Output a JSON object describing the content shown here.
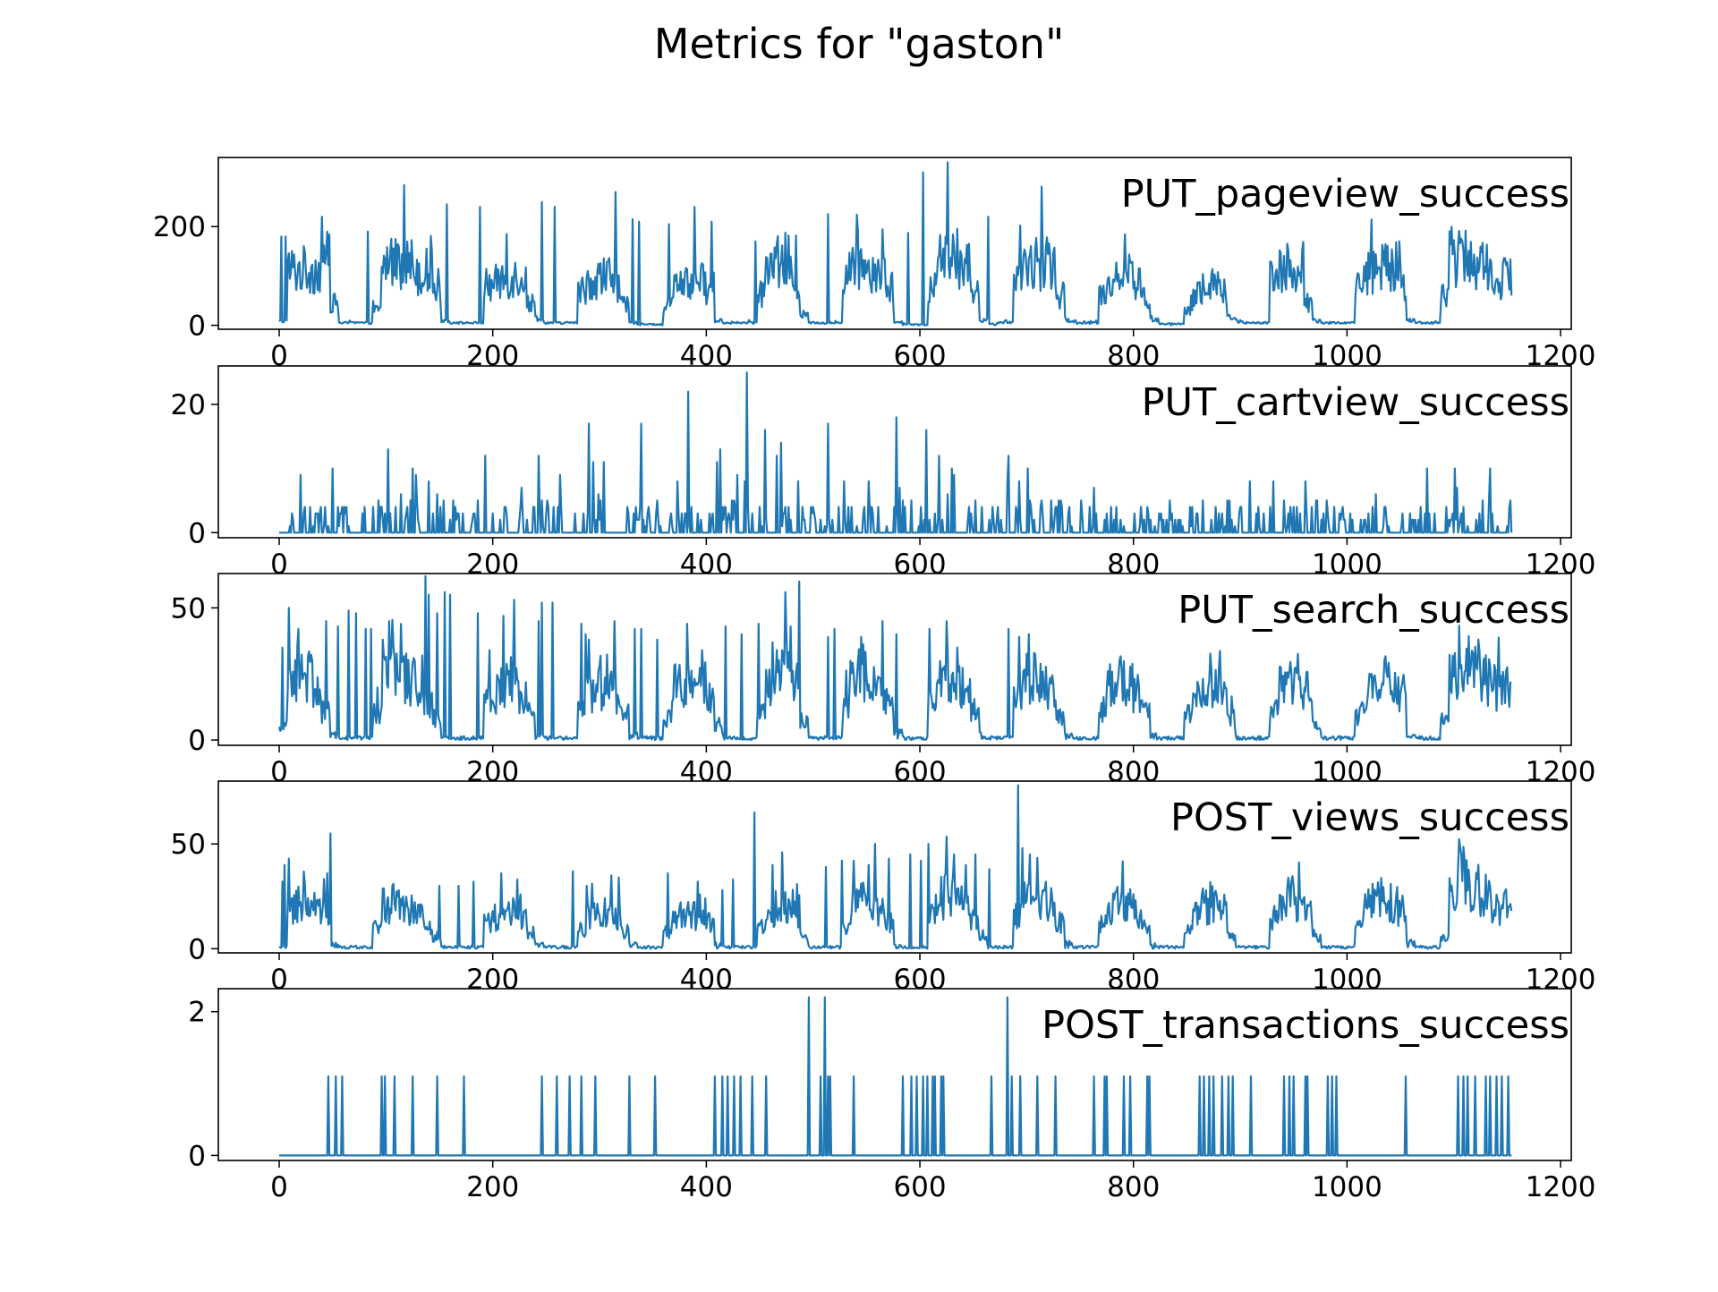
{
  "title": "Metrics for \"gaston\"",
  "colors": {
    "line": "#1f77b4",
    "axes": "#000000",
    "background": "#ffffff"
  },
  "chart_data": [
    {
      "type": "line",
      "series": [
        {
          "name": "PUT_pageview_success"
        }
      ],
      "xlim": [
        -57,
        1210
      ],
      "ylim": [
        -8,
        340
      ],
      "xticks": [
        "0",
        "200",
        "400",
        "600",
        "800",
        "1000",
        "1200"
      ],
      "yticks": [
        "0",
        "200"
      ],
      "grid": false,
      "legend": "top-right",
      "base": [
        8,
        112,
        112,
        112,
        112,
        112,
        45,
        5,
        5,
        5,
        5,
        30,
        125,
        135,
        132,
        125,
        110,
        108,
        80,
        10,
        5,
        5,
        5,
        5,
        80,
        85,
        95,
        98,
        100,
        45,
        15,
        5,
        5,
        5,
        5,
        70,
        90,
        95,
        100,
        75,
        40,
        5,
        3,
        2,
        2,
        40,
        82,
        85,
        85,
        88,
        75,
        10,
        5,
        5,
        5,
        5,
        65,
        110,
        125,
        130,
        80,
        20,
        5,
        5,
        5,
        5,
        105,
        125,
        120,
        118,
        115,
        70,
        5,
        3,
        2,
        2,
        80,
        128,
        130,
        130,
        115,
        60,
        10,
        3,
        5,
        5,
        85,
        120,
        130,
        118,
        115,
        60,
        10,
        5,
        5,
        5,
        65,
        95,
        100,
        98,
        85,
        55,
        10,
        3,
        3,
        3,
        30,
        70,
        75,
        80,
        70,
        15,
        8,
        5,
        5,
        5,
        108,
        118,
        122,
        120,
        45,
        10,
        5,
        5,
        5,
        5,
        82,
        112,
        112,
        115,
        118,
        90,
        10,
        5,
        5,
        5,
        62,
        140,
        150,
        135,
        128,
        118,
        95
      ],
      "spikes": [
        [
          2,
          180
        ],
        [
          6,
          180
        ],
        [
          40,
          220
        ],
        [
          45,
          190
        ],
        [
          83,
          190
        ],
        [
          112,
          160
        ],
        [
          157,
          245
        ],
        [
          188,
          240
        ],
        [
          213,
          185
        ],
        [
          246,
          250
        ],
        [
          258,
          240
        ],
        [
          315,
          270
        ],
        [
          331,
          215
        ],
        [
          337,
          210
        ],
        [
          365,
          205
        ],
        [
          389,
          240
        ],
        [
          405,
          210
        ],
        [
          446,
          170
        ],
        [
          484,
          182
        ],
        [
          514,
          225
        ],
        [
          589,
          187
        ],
        [
          603,
          310
        ],
        [
          626,
          330
        ],
        [
          664,
          220
        ],
        [
          694,
          202
        ],
        [
          714,
          281
        ]
      ]
    },
    {
      "type": "line",
      "series": [
        {
          "name": "PUT_cartview_success"
        }
      ],
      "xlim": [
        -57,
        1210
      ],
      "ylim": [
        -0.8,
        26
      ],
      "xticks": [
        "0",
        "200",
        "400",
        "600",
        "800",
        "1000",
        "1200"
      ],
      "yticks": [
        "0",
        "20"
      ],
      "grid": false,
      "legend": "top-right",
      "mean": 1.6,
      "prob": 0.28,
      "spikes": [
        [
          50,
          10
        ],
        [
          102,
          13
        ],
        [
          140,
          8
        ],
        [
          193,
          12
        ],
        [
          243,
          12
        ],
        [
          290,
          17
        ],
        [
          339,
          17
        ],
        [
          373,
          8
        ],
        [
          383,
          22
        ],
        [
          413,
          13
        ],
        [
          438,
          25
        ],
        [
          455,
          16
        ],
        [
          466,
          12
        ],
        [
          470,
          14
        ],
        [
          486,
          8
        ],
        [
          514,
          17
        ],
        [
          578,
          18
        ],
        [
          606,
          16
        ],
        [
          618,
          12
        ],
        [
          630,
          10
        ],
        [
          683,
          12
        ],
        [
          693,
          8
        ],
        [
          701,
          10
        ]
      ]
    },
    {
      "type": "line",
      "series": [
        {
          "name": "PUT_search_success"
        }
      ],
      "xlim": [
        -57,
        1210
      ],
      "ylim": [
        -2,
        63
      ],
      "xticks": [
        "0",
        "200",
        "400",
        "600",
        "800",
        "1000",
        "1200"
      ],
      "yticks": [
        "0",
        "50"
      ],
      "grid": false,
      "legend": "top-right",
      "base": [
        5,
        22,
        25,
        26,
        20,
        10,
        2,
        1,
        1,
        1,
        1,
        10,
        22,
        25,
        24,
        22,
        18,
        15,
        8,
        1,
        1,
        1,
        1,
        1,
        15,
        18,
        20,
        22,
        18,
        10,
        2,
        1,
        1,
        1,
        1,
        12,
        18,
        20,
        22,
        18,
        10,
        2,
        1,
        1,
        1,
        8,
        20,
        22,
        20,
        22,
        15,
        5,
        1,
        1,
        1,
        1,
        10,
        22,
        25,
        28,
        22,
        8,
        1,
        1,
        1,
        1,
        15,
        24,
        26,
        22,
        20,
        15,
        3,
        1,
        1,
        1,
        15,
        22,
        25,
        22,
        20,
        12,
        2,
        1,
        1,
        1,
        15,
        22,
        24,
        20,
        18,
        10,
        2,
        1,
        1,
        1,
        12,
        20,
        22,
        20,
        18,
        10,
        2,
        1,
        1,
        1,
        10,
        18,
        20,
        22,
        20,
        8,
        1,
        1,
        1,
        1,
        15,
        22,
        24,
        20,
        18,
        5,
        1,
        1,
        1,
        1,
        10,
        18,
        20,
        22,
        20,
        18,
        2,
        1,
        1,
        1,
        10,
        25,
        30,
        28,
        25,
        22,
        20
      ],
      "spikes": [
        [
          3,
          35
        ],
        [
          9,
          50
        ],
        [
          18,
          42
        ],
        [
          44,
          45
        ],
        [
          55,
          43
        ],
        [
          65,
          49
        ],
        [
          72,
          48
        ],
        [
          81,
          42
        ],
        [
          86,
          42
        ],
        [
          97,
          38
        ],
        [
          103,
          45
        ],
        [
          134,
          32
        ],
        [
          137,
          62
        ],
        [
          140,
          55
        ],
        [
          148,
          48
        ],
        [
          155,
          56
        ],
        [
          160,
          55
        ],
        [
          186,
          48
        ],
        [
          197,
          34
        ],
        [
          210,
          47
        ],
        [
          220,
          53
        ],
        [
          243,
          45
        ],
        [
          246,
          52
        ],
        [
          256,
          52
        ],
        [
          283,
          44
        ],
        [
          287,
          40
        ],
        [
          290,
          38
        ],
        [
          314,
          45
        ],
        [
          333,
          42
        ],
        [
          339,
          42
        ],
        [
          354,
          38
        ],
        [
          382,
          44
        ],
        [
          396,
          34
        ],
        [
          418,
          43
        ],
        [
          433,
          40
        ],
        [
          449,
          44
        ],
        [
          462,
          37
        ],
        [
          474,
          56
        ],
        [
          487,
          60
        ],
        [
          514,
          39
        ],
        [
          520,
          42
        ],
        [
          545,
          39
        ],
        [
          565,
          45
        ],
        [
          578,
          40
        ],
        [
          609,
          42
        ],
        [
          625,
          45
        ],
        [
          635,
          35
        ],
        [
          683,
          42
        ],
        [
          693,
          39
        ],
        [
          702,
          40
        ]
      ]
    },
    {
      "type": "line",
      "series": [
        {
          "name": "POST_views_success"
        }
      ],
      "xlim": [
        -57,
        1210
      ],
      "ylim": [
        -2,
        80
      ],
      "xticks": [
        "0",
        "200",
        "400",
        "600",
        "800",
        "1000",
        "1200"
      ],
      "yticks": [
        "0",
        "50"
      ],
      "grid": false,
      "legend": "top-right",
      "base": [
        1,
        20,
        22,
        22,
        20,
        15,
        3,
        1,
        1,
        1,
        1,
        10,
        20,
        22,
        20,
        18,
        15,
        12,
        5,
        1,
        1,
        1,
        1,
        1,
        12,
        15,
        18,
        18,
        15,
        8,
        2,
        1,
        1,
        1,
        1,
        10,
        15,
        18,
        18,
        15,
        8,
        2,
        1,
        1,
        1,
        8,
        15,
        18,
        16,
        18,
        12,
        3,
        1,
        1,
        1,
        1,
        10,
        18,
        20,
        22,
        18,
        6,
        1,
        1,
        1,
        1,
        10,
        20,
        22,
        20,
        18,
        12,
        2,
        1,
        1,
        1,
        15,
        25,
        28,
        25,
        22,
        15,
        5,
        1,
        1,
        1,
        15,
        22,
        25,
        22,
        20,
        12,
        3,
        1,
        1,
        1,
        12,
        20,
        22,
        20,
        18,
        10,
        2,
        1,
        1,
        1,
        8,
        18,
        20,
        22,
        18,
        6,
        1,
        1,
        1,
        1,
        15,
        22,
        24,
        22,
        18,
        5,
        1,
        1,
        1,
        1,
        10,
        20,
        22,
        24,
        22,
        18,
        3,
        1,
        1,
        1,
        5,
        25,
        35,
        32,
        28,
        25,
        20
      ],
      "spikes": [
        [
          3,
          32
        ],
        [
          5,
          40
        ],
        [
          9,
          43
        ],
        [
          45,
          36
        ],
        [
          48,
          55
        ],
        [
          111,
          25
        ],
        [
          112,
          28
        ],
        [
          150,
          30
        ],
        [
          168,
          30
        ],
        [
          182,
          32
        ],
        [
          208,
          36
        ],
        [
          223,
          33
        ],
        [
          275,
          37
        ],
        [
          288,
          30
        ],
        [
          293,
          31
        ],
        [
          311,
          35
        ],
        [
          318,
          34
        ],
        [
          364,
          36
        ],
        [
          392,
          32
        ],
        [
          415,
          28
        ],
        [
          425,
          33
        ],
        [
          445,
          65
        ],
        [
          462,
          40
        ],
        [
          471,
          46
        ],
        [
          512,
          39
        ],
        [
          527,
          42
        ],
        [
          538,
          42
        ],
        [
          552,
          40
        ],
        [
          558,
          50
        ],
        [
          571,
          43
        ],
        [
          591,
          45
        ],
        [
          601,
          42
        ],
        [
          608,
          50
        ],
        [
          633,
          28
        ],
        [
          643,
          40
        ],
        [
          652,
          45
        ],
        [
          665,
          38
        ],
        [
          692,
          78
        ],
        [
          696,
          48
        ],
        [
          703,
          45
        ]
      ]
    },
    {
      "type": "line",
      "series": [
        {
          "name": "POST_transactions_success"
        }
      ],
      "xlim": [
        -57,
        1210
      ],
      "ylim": [
        -0.07,
        2.32
      ],
      "xticks": [
        "0",
        "200",
        "400",
        "600",
        "800",
        "1000",
        "1200"
      ],
      "yticks": [
        "0",
        "2"
      ],
      "grid": false,
      "legend": "top-right",
      "ones": [
        46,
        53,
        59,
        96,
        99,
        108,
        125,
        148,
        173,
        246,
        260,
        272,
        283,
        296,
        328,
        352,
        408,
        415,
        420,
        426,
        432,
        443,
        456,
        507,
        514,
        516,
        538,
        584,
        592,
        597,
        603,
        607,
        612,
        614,
        620,
        622,
        667,
        686,
        694,
        710,
        727,
        763,
        773,
        775,
        791,
        797,
        813,
        815,
        862,
        866,
        871,
        875,
        883,
        889,
        893,
        910,
        941,
        946,
        950,
        961,
        963,
        982,
        986,
        990,
        1055,
        1104,
        1109,
        1113,
        1120,
        1130,
        1134,
        1140,
        1145,
        1151
      ],
      "twos": [
        496,
        511,
        682
      ]
    }
  ]
}
